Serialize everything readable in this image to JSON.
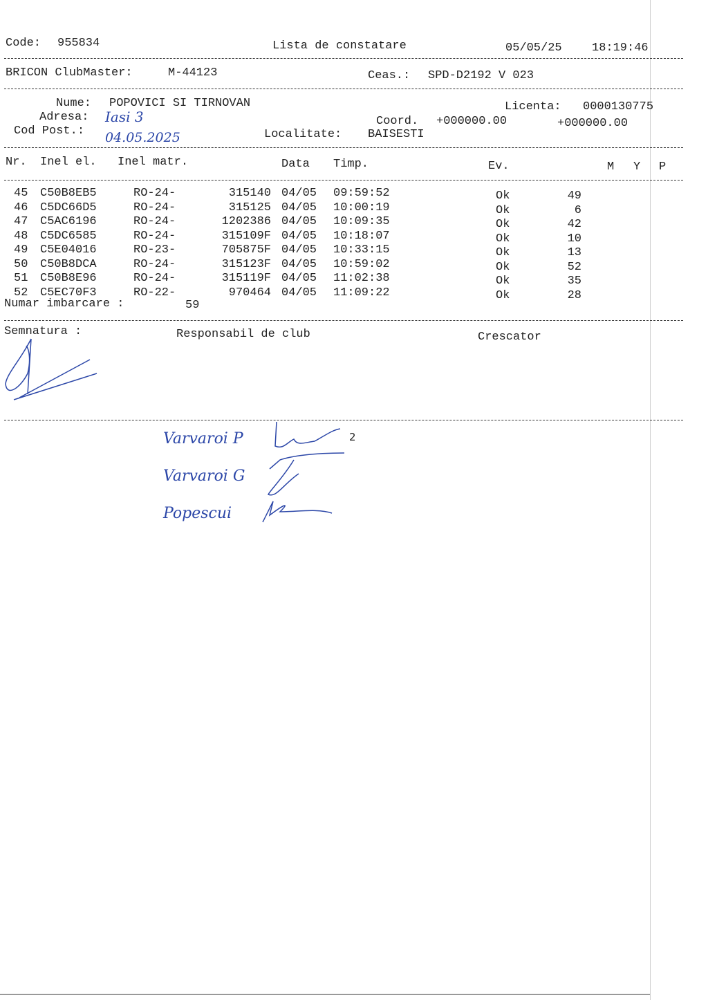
{
  "header": {
    "code_label": "Code:",
    "code": "955834",
    "title": "Lista de constatare",
    "date": "05/05/25",
    "time": "18:19:46"
  },
  "system": {
    "label": "BRICON ClubMaster:",
    "id": "M-44123",
    "clock_label": "Ceas.:",
    "clock": "SPD-D2192 V 023"
  },
  "owner": {
    "name_label": "Nume:",
    "name": "POPOVICI SI TIRNOVAN",
    "address_label": "Adresa:",
    "address_handwritten": "Iasi 3",
    "postcode_label": "Cod Post.:",
    "postcode_handwritten": "04.05.2025",
    "license_label": "Licenta:",
    "license": "0000130775",
    "coord_label": "Coord.",
    "coord1": "+000000.00",
    "coord2": "+000000.00",
    "locality_label": "Localitate:",
    "locality": "BAISESTI"
  },
  "table": {
    "headers": {
      "nr": "Nr.",
      "inel_el": "Inel el.",
      "inel_matr": "Inel matr.",
      "data": "Data",
      "timp": "Timp.",
      "ev": "Ev.",
      "m": "M",
      "y": "Y",
      "p": "P"
    },
    "rows": [
      {
        "nr": "45",
        "inel_el": "C50B8EB5",
        "prefix": "RO-24-",
        "matr": "315140",
        "data": "04/05",
        "timp": "09:59:52",
        "status": "Ok",
        "ev": "49"
      },
      {
        "nr": "46",
        "inel_el": "C5DC66D5",
        "prefix": "RO-24-",
        "matr": "315125",
        "data": "04/05",
        "timp": "10:00:19",
        "status": "Ok",
        "ev": "6"
      },
      {
        "nr": "47",
        "inel_el": "C5AC6196",
        "prefix": "RO-24-",
        "matr": "1202386",
        "data": "04/05",
        "timp": "10:09:35",
        "status": "Ok",
        "ev": "42"
      },
      {
        "nr": "48",
        "inel_el": "C5DC6585",
        "prefix": "RO-24-",
        "matr": "315109F",
        "data": "04/05",
        "timp": "10:18:07",
        "status": "Ok",
        "ev": "10"
      },
      {
        "nr": "49",
        "inel_el": "C5E04016",
        "prefix": "RO-23-",
        "matr": "705875F",
        "data": "04/05",
        "timp": "10:33:15",
        "status": "Ok",
        "ev": "13"
      },
      {
        "nr": "50",
        "inel_el": "C50B8DCA",
        "prefix": "RO-24-",
        "matr": "315123F",
        "data": "04/05",
        "timp": "10:59:02",
        "status": "Ok",
        "ev": "52"
      },
      {
        "nr": "51",
        "inel_el": "C50B8E96",
        "prefix": "RO-24-",
        "matr": "315119F",
        "data": "04/05",
        "timp": "11:02:38",
        "status": "Ok",
        "ev": "35"
      },
      {
        "nr": "52",
        "inel_el": "C5EC70F3",
        "prefix": "RO-22-",
        "matr": "970464",
        "data": "04/05",
        "timp": "11:09:22",
        "status": "Ok",
        "ev": "28"
      }
    ],
    "count_label": "Numar imbarcare :",
    "count": "59"
  },
  "signatures": {
    "label": "Semnatura :",
    "club": "Responsabil de club",
    "breeder": "Crescator"
  },
  "handwritten_names": [
    {
      "name": "Varvaroi P",
      "mark": "2"
    },
    {
      "name": "Varvaroi G",
      "mark": ""
    },
    {
      "name": "Popescui",
      "mark": ""
    }
  ],
  "ink_color": "#2c47a8"
}
